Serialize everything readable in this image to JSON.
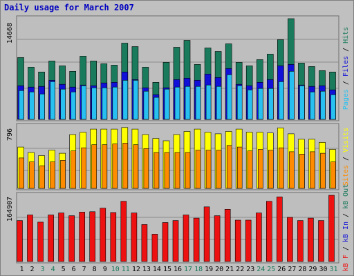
{
  "title": "Daily usage for March 2007",
  "colors": {
    "hits": "#1a7a5c",
    "files": "#1010d8",
    "pages": "#28c0f0",
    "visits": "#ffff00",
    "sites": "#ff8c00",
    "kb_in": "#1a7a5c",
    "kb_out": "#1010d8",
    "kb_f": "#ee1111",
    "weekend_day": "#1a7a5c",
    "weekday_day": "#000000",
    "panel_label_sep": "#000000"
  },
  "chart_data": [
    {
      "type": "bar",
      "name": "requests",
      "y_max_label": "14668",
      "ylim": [
        0,
        14668
      ],
      "axis_labels": [
        {
          "text": "Pages",
          "color_key": "pages"
        },
        {
          "text": " / ",
          "color_key": "panel_label_sep"
        },
        {
          "text": "Files",
          "color_key": "files"
        },
        {
          "text": " / ",
          "color_key": "panel_label_sep"
        },
        {
          "text": "Hits",
          "color_key": "hits"
        }
      ],
      "categories": [
        "1",
        "2",
        "3",
        "4",
        "5",
        "6",
        "7",
        "8",
        "9",
        "10",
        "11",
        "12",
        "13",
        "14",
        "15",
        "16",
        "17",
        "18",
        "19",
        "20",
        "21",
        "22",
        "23",
        "24",
        "25",
        "26",
        "27",
        "28",
        "29",
        "30",
        "31"
      ],
      "series": [
        {
          "name": "Hits",
          "color_key": "hits",
          "values": [
            9000,
            7600,
            6900,
            8500,
            7800,
            7000,
            9200,
            8500,
            8100,
            7900,
            11100,
            10600,
            7600,
            5400,
            8300,
            10500,
            11500,
            8000,
            10400,
            9900,
            11000,
            8300,
            7800,
            8700,
            9500,
            11600,
            14668,
            8200,
            7700,
            7100,
            6900
          ]
        },
        {
          "name": "Files",
          "color_key": "files",
          "values": [
            4900,
            4700,
            4800,
            5700,
            5100,
            4700,
            5000,
            4900,
            5300,
            5400,
            6900,
            5800,
            4600,
            3600,
            4600,
            5800,
            6000,
            5700,
            6600,
            6100,
            7400,
            5100,
            4900,
            5400,
            5800,
            7800,
            8000,
            5000,
            4800,
            4900,
            4300
          ]
        },
        {
          "name": "Pages",
          "color_key": "pages",
          "values": [
            4200,
            4000,
            3700,
            5500,
            4400,
            4000,
            4900,
            4600,
            4600,
            4700,
            5700,
            5700,
            4100,
            3200,
            4400,
            4700,
            4800,
            4800,
            5000,
            4800,
            6500,
            4900,
            4300,
            4500,
            4500,
            5500,
            7000,
            4900,
            4000,
            4100,
            3600
          ]
        }
      ]
    },
    {
      "type": "bar",
      "name": "visitors",
      "y_max_label": "796",
      "ylim": [
        0,
        796
      ],
      "axis_labels": [
        {
          "text": "Sites",
          "color_key": "sites"
        },
        {
          "text": " / ",
          "color_key": "panel_label_sep"
        },
        {
          "text": "Visits",
          "color_key": "visits"
        }
      ],
      "categories": [
        "1",
        "2",
        "3",
        "4",
        "5",
        "6",
        "7",
        "8",
        "9",
        "10",
        "11",
        "12",
        "13",
        "14",
        "15",
        "16",
        "17",
        "18",
        "19",
        "20",
        "21",
        "22",
        "23",
        "24",
        "25",
        "26",
        "27",
        "28",
        "29",
        "30",
        "31"
      ],
      "series": [
        {
          "name": "Visits",
          "color_key": "visits",
          "values": [
            530,
            460,
            420,
            490,
            450,
            690,
            720,
            760,
            760,
            760,
            780,
            760,
            690,
            640,
            610,
            690,
            730,
            760,
            720,
            700,
            730,
            760,
            720,
            720,
            710,
            775,
            700,
            630,
            630,
            590,
            500
          ]
        },
        {
          "name": "Sites",
          "color_key": "sites",
          "values": [
            390,
            340,
            290,
            340,
            360,
            480,
            520,
            560,
            560,
            570,
            580,
            560,
            510,
            460,
            460,
            460,
            460,
            490,
            490,
            490,
            550,
            530,
            480,
            500,
            490,
            520,
            470,
            440,
            470,
            450,
            340
          ]
        }
      ]
    },
    {
      "type": "bar",
      "name": "volume",
      "y_max_label": "164907",
      "ylim": [
        0,
        164907
      ],
      "axis_labels": [
        {
          "text": "kB F",
          "color_key": "kb_f"
        },
        {
          "text": " / ",
          "color_key": "panel_label_sep"
        },
        {
          "text": "kB In",
          "color_key": "kb_out"
        },
        {
          "text": " / ",
          "color_key": "panel_label_sep"
        },
        {
          "text": "kB Out",
          "color_key": "kb_in"
        }
      ],
      "categories": [
        "1",
        "2",
        "3",
        "4",
        "5",
        "6",
        "7",
        "8",
        "9",
        "10",
        "11",
        "12",
        "13",
        "14",
        "15",
        "16",
        "17",
        "18",
        "19",
        "20",
        "21",
        "22",
        "23",
        "24",
        "25",
        "26",
        "27",
        "28",
        "29",
        "30",
        "31"
      ],
      "series": [
        {
          "name": "kB F",
          "color_key": "kb_f",
          "values": [
            102000,
            116000,
            98000,
            116000,
            121000,
            114000,
            123000,
            124000,
            133000,
            122000,
            150000,
            121000,
            92000,
            68000,
            97000,
            102000,
            116000,
            108000,
            136000,
            114000,
            130000,
            103000,
            103000,
            121000,
            150000,
            161000,
            110000,
            102000,
            108000,
            102000,
            164907
          ]
        }
      ]
    }
  ],
  "day_labels": [
    {
      "text": "1",
      "weekend": false
    },
    {
      "text": "2",
      "weekend": false
    },
    {
      "text": "3",
      "weekend": true
    },
    {
      "text": "4",
      "weekend": true
    },
    {
      "text": "5",
      "weekend": false
    },
    {
      "text": "6",
      "weekend": false
    },
    {
      "text": "7",
      "weekend": false
    },
    {
      "text": "8",
      "weekend": false
    },
    {
      "text": "9",
      "weekend": false
    },
    {
      "text": "10",
      "weekend": true
    },
    {
      "text": "11",
      "weekend": true
    },
    {
      "text": "12",
      "weekend": false
    },
    {
      "text": "13",
      "weekend": false
    },
    {
      "text": "14",
      "weekend": false
    },
    {
      "text": "15",
      "weekend": false
    },
    {
      "text": "16",
      "weekend": false
    },
    {
      "text": "17",
      "weekend": true
    },
    {
      "text": "18",
      "weekend": true
    },
    {
      "text": "19",
      "weekend": false
    },
    {
      "text": "20",
      "weekend": false
    },
    {
      "text": "21",
      "weekend": false
    },
    {
      "text": "22",
      "weekend": false
    },
    {
      "text": "23",
      "weekend": false
    },
    {
      "text": "24",
      "weekend": true
    },
    {
      "text": "25",
      "weekend": true
    },
    {
      "text": "26",
      "weekend": false
    },
    {
      "text": "27",
      "weekend": false
    },
    {
      "text": "28",
      "weekend": false
    },
    {
      "text": "29",
      "weekend": false
    },
    {
      "text": "30",
      "weekend": false
    },
    {
      "text": "31",
      "weekend": true
    }
  ]
}
